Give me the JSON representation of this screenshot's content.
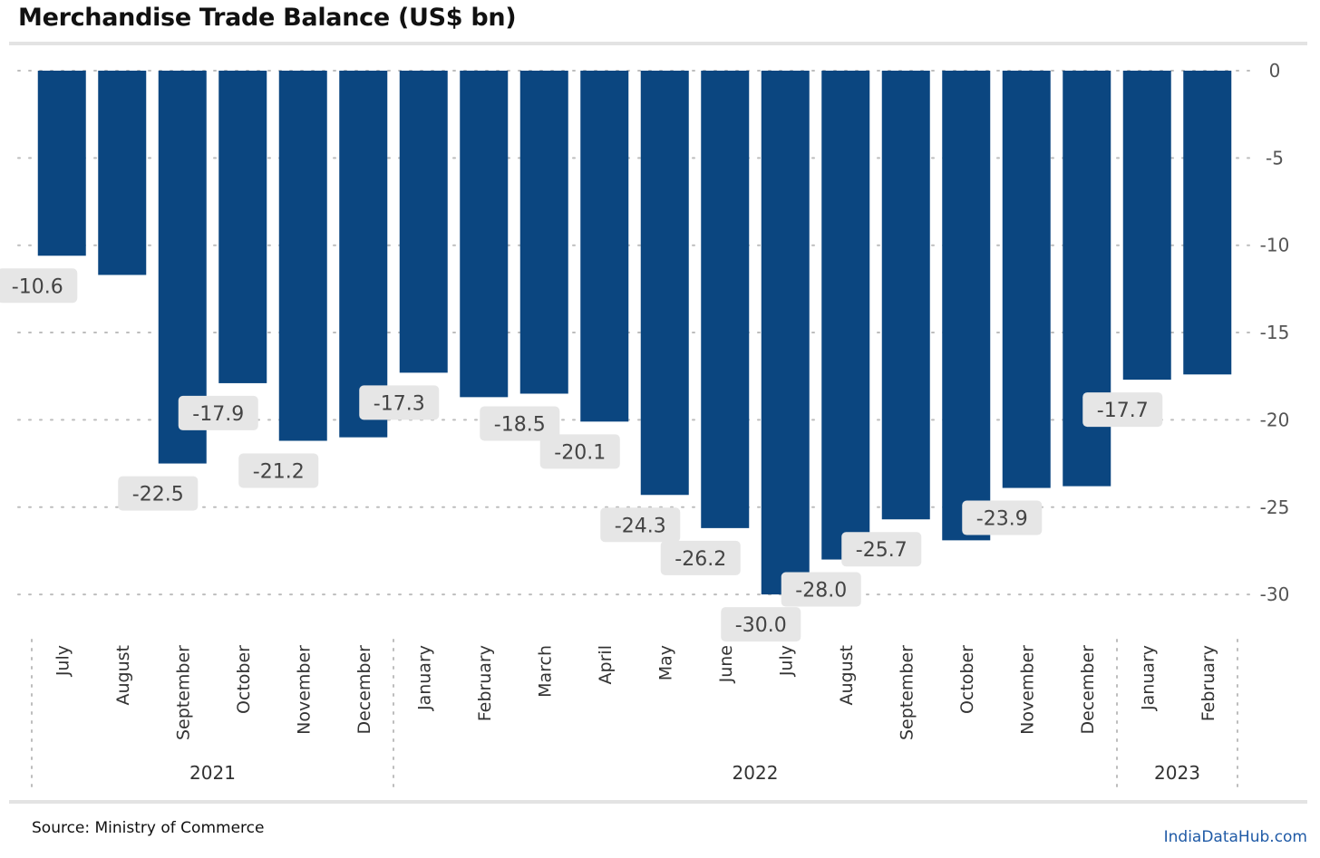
{
  "title": "Merchandise Trade Balance (US$ bn)",
  "source": "Source: Ministry of Commerce",
  "brand": "IndiaDataHub.com",
  "colors": {
    "bar": "#0b4680",
    "grid": "#bdbdbd",
    "label_bg": "#e6e6e6",
    "label_text": "#444444",
    "brand": "#1f5aa6"
  },
  "chart_data": {
    "type": "bar",
    "categories": [
      "July",
      "August",
      "September",
      "October",
      "November",
      "December",
      "January",
      "February",
      "March",
      "April",
      "May",
      "June",
      "July",
      "August",
      "September",
      "October",
      "November",
      "December",
      "January",
      "February"
    ],
    "groups": [
      {
        "label": "2021",
        "start": 0,
        "end": 5
      },
      {
        "label": "2022",
        "start": 6,
        "end": 17
      },
      {
        "label": "2023",
        "start": 18,
        "end": 19
      }
    ],
    "values": [
      -10.6,
      -11.7,
      -22.5,
      -17.9,
      -21.2,
      -21.0,
      -17.3,
      -18.7,
      -18.5,
      -20.1,
      -24.3,
      -26.2,
      -30.0,
      -28.0,
      -25.7,
      -26.9,
      -23.9,
      -23.8,
      -17.7,
      -17.4
    ],
    "data_labels": [
      {
        "index": 0,
        "text": "-10.6"
      },
      {
        "index": 2,
        "text": "-22.5"
      },
      {
        "index": 3,
        "text": "-17.9"
      },
      {
        "index": 4,
        "text": "-21.2"
      },
      {
        "index": 6,
        "text": "-17.3"
      },
      {
        "index": 8,
        "text": "-18.5"
      },
      {
        "index": 9,
        "text": "-20.1"
      },
      {
        "index": 10,
        "text": "-24.3"
      },
      {
        "index": 11,
        "text": "-26.2"
      },
      {
        "index": 12,
        "text": "-30.0"
      },
      {
        "index": 13,
        "text": "-28.0"
      },
      {
        "index": 14,
        "text": "-25.7"
      },
      {
        "index": 16,
        "text": "-23.9"
      },
      {
        "index": 18,
        "text": "-17.7"
      }
    ],
    "y_ticks": [
      0,
      -5,
      -10,
      -15,
      -20,
      -25,
      -30
    ],
    "ylim": [
      -30,
      0
    ],
    "grid": true
  }
}
